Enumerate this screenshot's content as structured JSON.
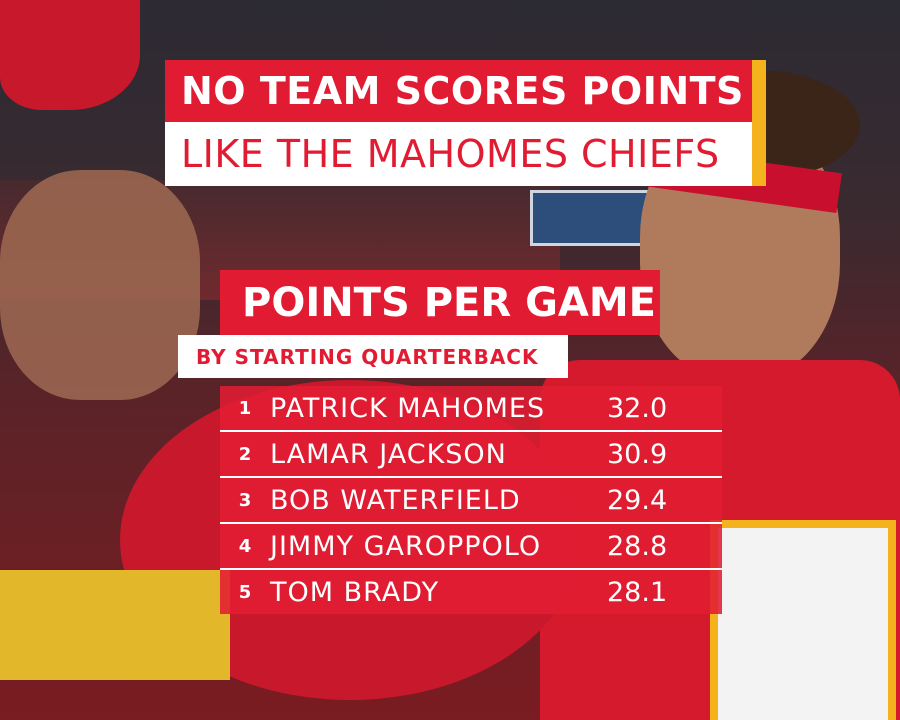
{
  "header": {
    "line1": "NO TEAM SCORES POINTS",
    "line2": "LIKE THE MAHOMES CHIEFS"
  },
  "panel": {
    "title": "POINTS PER GAME",
    "subtitle": "BY STARTING QUARTERBACK"
  },
  "table": {
    "rows": [
      [
        "1",
        "PATRICK MAHOMES",
        "32.0"
      ],
      [
        "2",
        "LAMAR JACKSON",
        "30.9"
      ],
      [
        "3",
        "BOB WATERFIELD",
        "29.4"
      ],
      [
        "4",
        "JIMMY GAROPPOLO",
        "28.8"
      ],
      [
        "5",
        "TOM BRADY",
        "28.1"
      ]
    ]
  }
}
